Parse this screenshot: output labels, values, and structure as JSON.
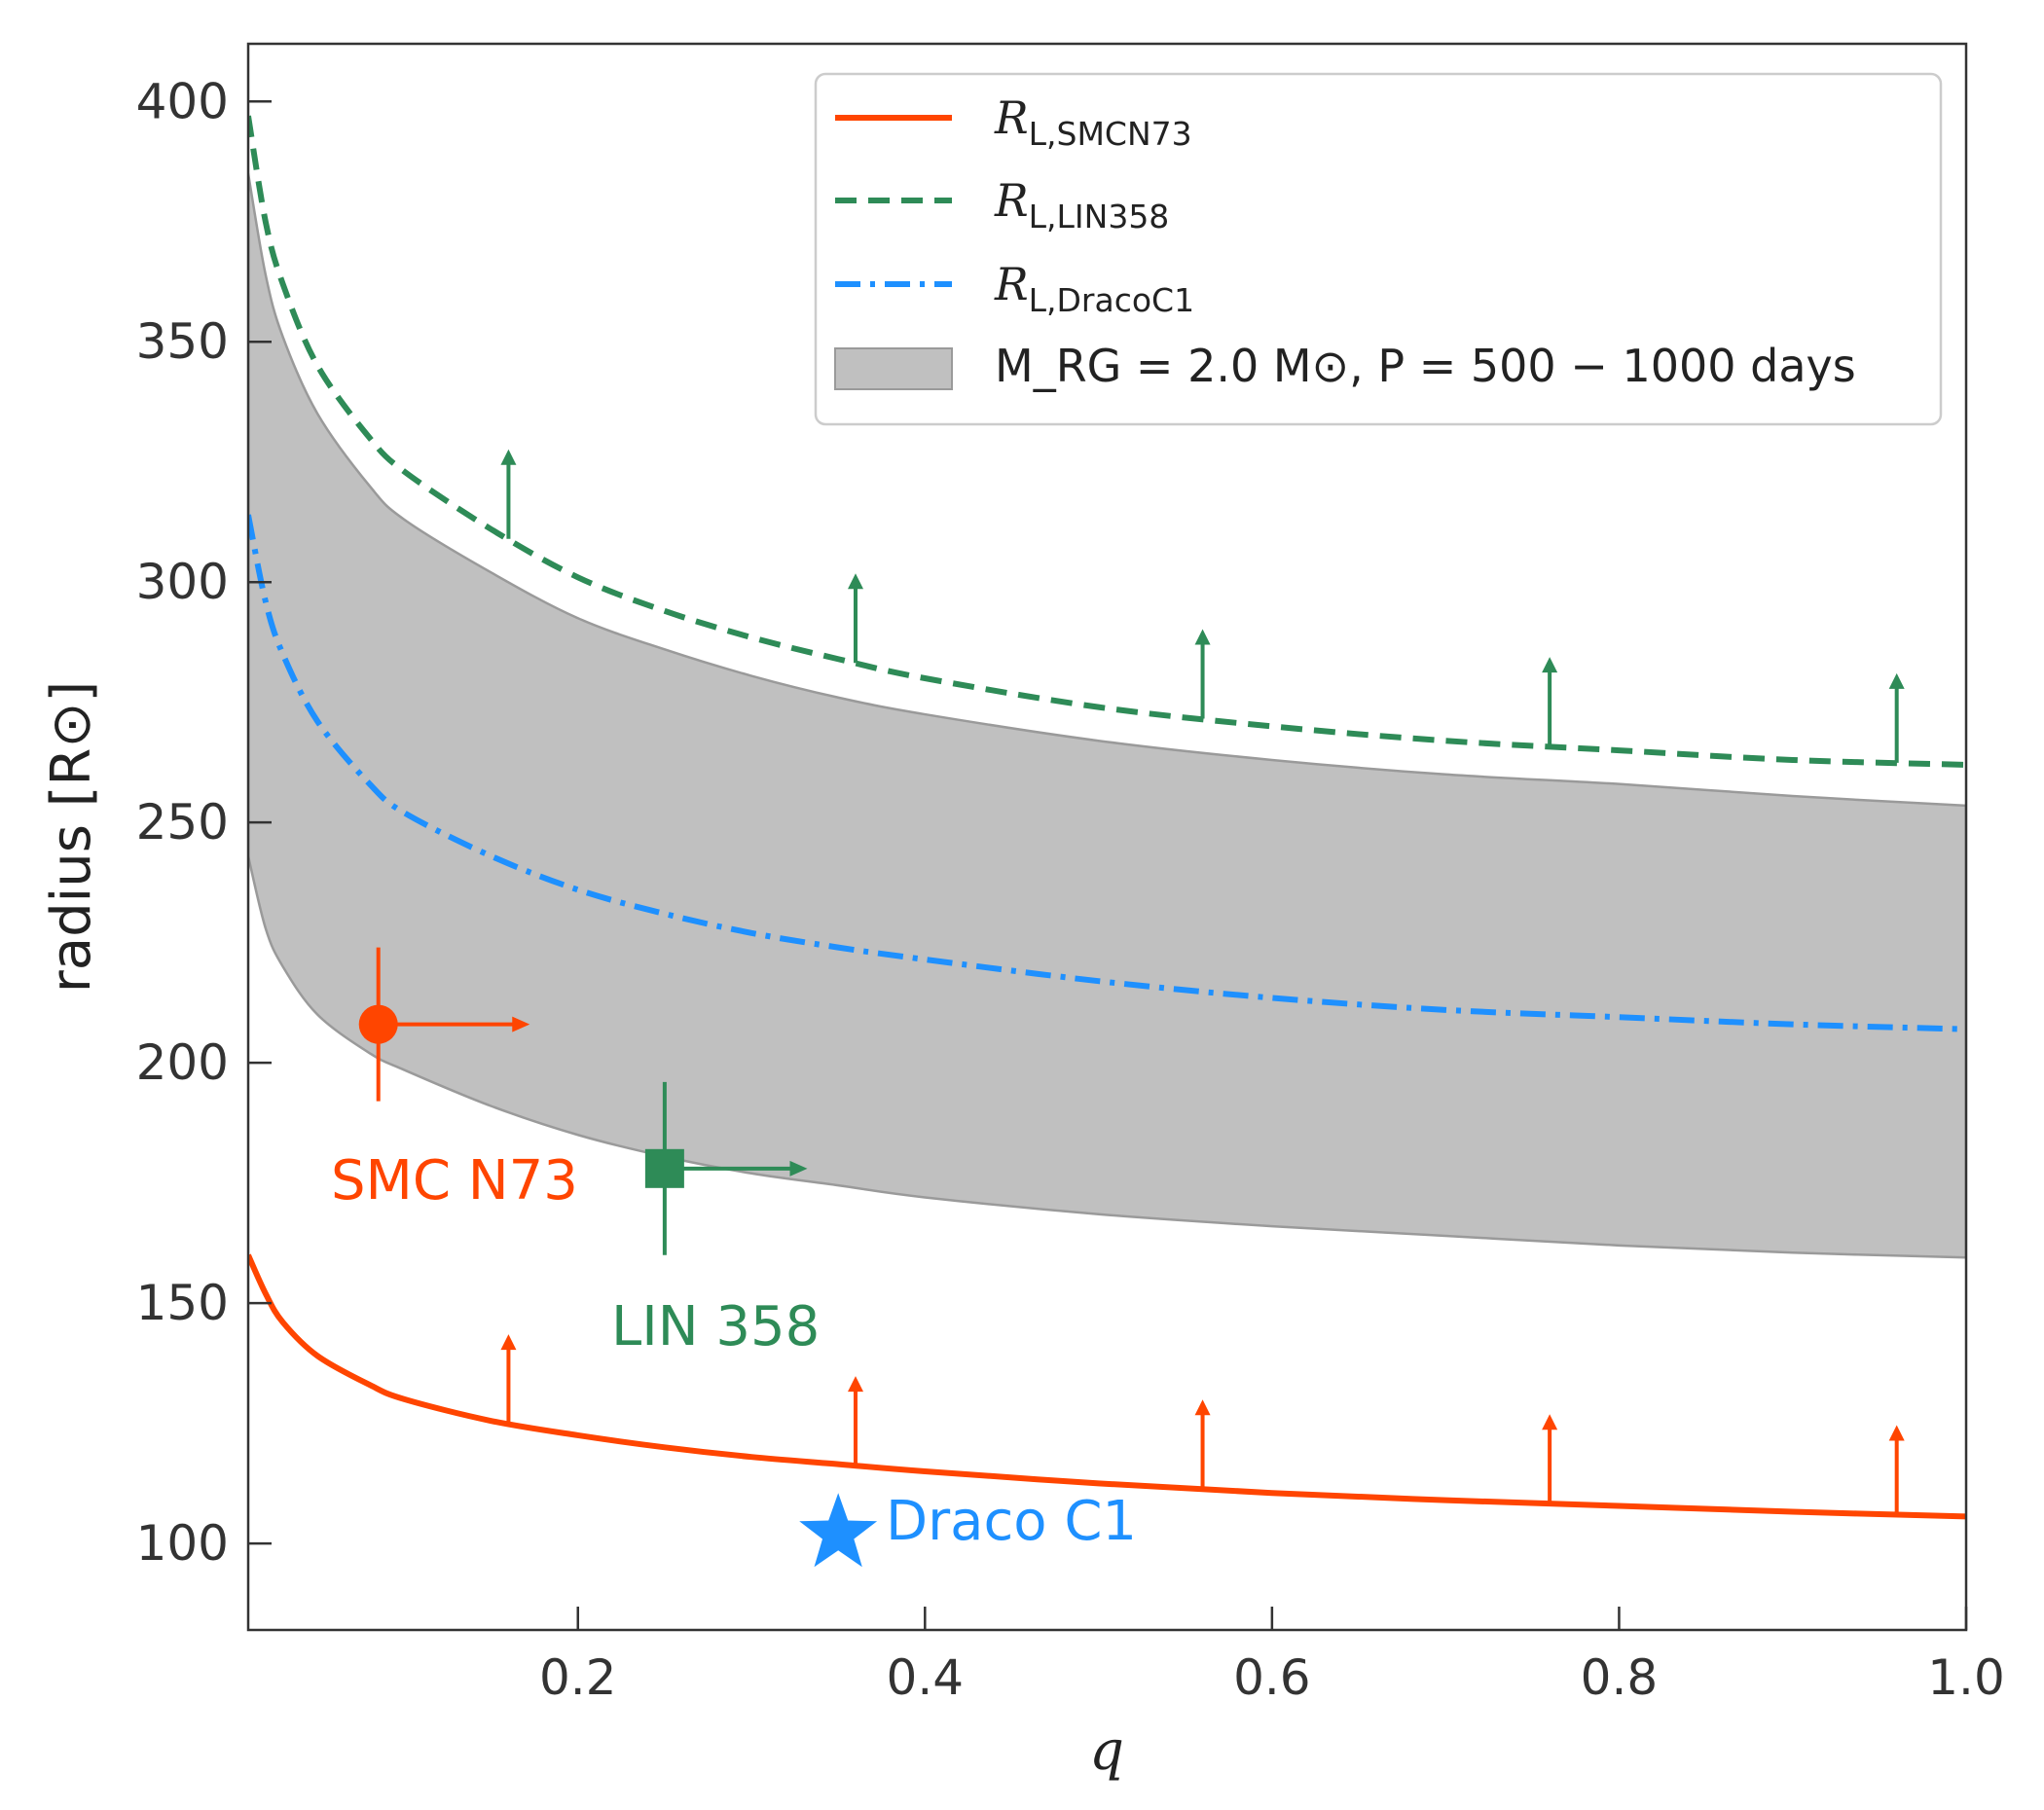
{
  "chart_data": {
    "type": "line",
    "xlabel": "q",
    "ylabel": "radius [R⊙]",
    "xlim": [
      0.01,
      1.0
    ],
    "ylim": [
      82,
      412
    ],
    "xticks": [
      0.2,
      0.4,
      0.6,
      0.8,
      1.0
    ],
    "xtick_labels": [
      "0.2",
      "0.4",
      "0.6",
      "0.8",
      "1.0"
    ],
    "yticks": [
      100,
      150,
      200,
      250,
      300,
      350,
      400
    ],
    "ytick_labels": [
      "100",
      "150",
      "200",
      "250",
      "300",
      "350",
      "400"
    ],
    "grid": false,
    "legend_position": "top-right",
    "q_samples": [
      0.01,
      0.02,
      0.03,
      0.05,
      0.08,
      0.1,
      0.15,
      0.2,
      0.25,
      0.3,
      0.35,
      0.4,
      0.5,
      0.6,
      0.7,
      0.8,
      0.9,
      1.0
    ],
    "series": [
      {
        "name": "R_L,SMCN73",
        "legend_main": "R",
        "legend_sub": "L,SMCN73",
        "style": "solid",
        "color": "#ff4500",
        "values": [
          160,
          152,
          146,
          139,
          133,
          130,
          125.5,
          122.5,
          120,
          118,
          116.5,
          115,
          112.5,
          110.5,
          109,
          107.8,
          106.6,
          105.6
        ],
        "limit_arrows_q": [
          0.16,
          0.36,
          0.56,
          0.76,
          0.96
        ]
      },
      {
        "name": "R_L,LIN358",
        "legend_main": "R",
        "legend_sub": "L,LIN358",
        "style": "dashed",
        "color": "#2e8b57",
        "values": [
          397,
          375,
          362,
          345,
          330,
          323,
          311,
          301,
          294,
          288.5,
          284,
          280,
          274,
          270,
          267,
          265,
          263,
          262
        ],
        "limit_arrows_q": [
          0.16,
          0.36,
          0.56,
          0.76,
          0.96
        ]
      },
      {
        "name": "R_L,DracoC1",
        "legend_main": "R",
        "legend_sub": "L,DracoC1",
        "style": "dashdot",
        "color": "#1e90ff",
        "values": [
          314,
          296,
          285,
          271,
          258,
          252,
          243,
          236,
          231,
          227,
          224,
          221.5,
          217,
          213.5,
          211,
          209.5,
          208,
          207
        ]
      }
    ],
    "band": {
      "name": "M_RG = 2.0 M⊙, P = 500 − 1000 days",
      "legend_text": "M_RG = 2.0 M⊙, P = 500 − 1000 days",
      "color": "#c0c0c0",
      "edge_color": "#9a9a9a",
      "lower": [
        243,
        228,
        220,
        210,
        202,
        198.5,
        191,
        185,
        180.5,
        177,
        174.5,
        172,
        168.5,
        166,
        164,
        162,
        160.5,
        159.5
      ],
      "upper": [
        385,
        364,
        351,
        335,
        320,
        313,
        302,
        292.5,
        286,
        280.5,
        276,
        272.5,
        267,
        263,
        260,
        258,
        255.5,
        253.5
      ]
    },
    "points": [
      {
        "name": "SMC N73",
        "label": "SMC N73",
        "q": 0.085,
        "r": 208,
        "marker": "circle",
        "color": "#ff4500",
        "yerr": [
          192,
          224
        ],
        "q_lower_limit_to": 0.17
      },
      {
        "name": "LIN 358",
        "label": "LIN 358",
        "q": 0.25,
        "r": 178,
        "marker": "square",
        "color": "#2e8b57",
        "yerr": [
          160,
          196
        ],
        "q_lower_limit_to": 0.33
      },
      {
        "name": "Draco C1",
        "label": "Draco C1",
        "q": 0.35,
        "r": 102,
        "marker": "star",
        "color": "#1e90ff"
      }
    ]
  }
}
